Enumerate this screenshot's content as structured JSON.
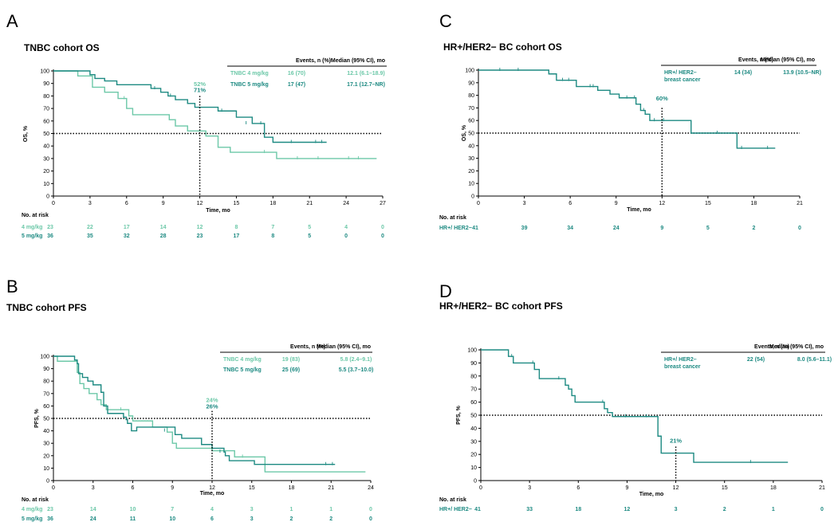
{
  "colors": {
    "light": "#6cc8a8",
    "dark": "#1d8a82",
    "axis": "#000000"
  },
  "chart_data": [
    {
      "id": "A",
      "type": "line",
      "panel_letter": "A",
      "title": "TNBC cohort OS",
      "xlabel": "Time, mo",
      "ylabel": "OS, %",
      "xlim": [
        0,
        27
      ],
      "ylim": [
        0,
        100
      ],
      "xticks": [
        0,
        3,
        6,
        9,
        12,
        15,
        18,
        21,
        24,
        27
      ],
      "yticks": [
        0,
        10,
        20,
        30,
        40,
        50,
        60,
        70,
        80,
        90,
        100
      ],
      "legend": {
        "headers": [
          "Events, n (%)",
          "Median (95% CI), mo"
        ],
        "rows": [
          {
            "label": "TNBC 4 mg/kg",
            "events": "16 (70)",
            "median": "12.1 (6.1–18.9)",
            "color": "light"
          },
          {
            "label": "TNBC 5 mg/kg",
            "events": "17 (47)",
            "median": "17.1 (12.7–NR)",
            "color": "dark"
          }
        ]
      },
      "annotations": [
        {
          "text": "52%",
          "x": 12,
          "y": 88,
          "color": "light"
        },
        {
          "text": "71%",
          "x": 12,
          "y": 83,
          "color": "dark"
        }
      ],
      "vline": {
        "x": 12,
        "y": 80
      },
      "series": [
        {
          "name": "TNBC 4 mg/kg",
          "color": "light",
          "steps": [
            [
              0,
              100
            ],
            [
              2,
              96
            ],
            [
              3.2,
              87
            ],
            [
              4.2,
              83
            ],
            [
              5.3,
              78
            ],
            [
              6,
              70
            ],
            [
              6.5,
              65
            ],
            [
              9.5,
              61
            ],
            [
              10,
              56
            ],
            [
              11,
              52
            ],
            [
              12.5,
              48
            ],
            [
              13.5,
              39
            ],
            [
              14.5,
              35
            ],
            [
              18.3,
              30
            ],
            [
              26.5,
              30
            ]
          ],
          "censors": [
            [
              5.8,
              78
            ],
            [
              17.3,
              35
            ],
            [
              20,
              30
            ],
            [
              21.7,
              30
            ],
            [
              24.2,
              30
            ],
            [
              25,
              30
            ]
          ]
        },
        {
          "name": "TNBC 5 mg/kg",
          "color": "dark",
          "steps": [
            [
              0,
              100
            ],
            [
              3,
              97
            ],
            [
              3.4,
              94
            ],
            [
              4.2,
              92
            ],
            [
              5.2,
              89
            ],
            [
              8,
              86
            ],
            [
              8.8,
              83
            ],
            [
              9.4,
              80
            ],
            [
              10,
              77
            ],
            [
              11,
              74
            ],
            [
              11.6,
              71
            ],
            [
              13.5,
              68
            ],
            [
              15,
              63
            ],
            [
              16.3,
              58
            ],
            [
              17.3,
              47
            ],
            [
              18,
              43
            ],
            [
              22.4,
              43
            ]
          ],
          "censors": [
            [
              8.3,
              86
            ],
            [
              9.6,
              80
            ],
            [
              13.8,
              68
            ],
            [
              15.8,
              58
            ],
            [
              17,
              58
            ],
            [
              19.5,
              43
            ],
            [
              21.5,
              43
            ],
            [
              22,
              43
            ]
          ]
        }
      ],
      "risk": {
        "header": "No. at risk",
        "times": [
          0,
          3,
          6,
          9,
          12,
          15,
          18,
          21,
          24,
          27
        ],
        "rows": [
          {
            "label": "4 mg/kg",
            "values": [
              "23",
              "22",
              "17",
              "14",
              "12",
              "8",
              "7",
              "5",
              "4",
              "0"
            ],
            "color": "light"
          },
          {
            "label": "5 mg/kg",
            "values": [
              "36",
              "35",
              "32",
              "28",
              "23",
              "17",
              "8",
              "5",
              "0",
              "0"
            ],
            "color": "dark"
          }
        ]
      }
    },
    {
      "id": "B",
      "type": "line",
      "panel_letter": "B",
      "title": "TNBC cohort PFS",
      "xlabel": "Time, mo",
      "ylabel": "PFS, %",
      "xlim": [
        0,
        24
      ],
      "ylim": [
        0,
        100
      ],
      "xticks": [
        0,
        3,
        6,
        9,
        12,
        15,
        18,
        21,
        24
      ],
      "yticks": [
        0,
        10,
        20,
        30,
        40,
        50,
        60,
        70,
        80,
        90,
        100
      ],
      "legend": {
        "headers": [
          "Events, n (%)",
          "Median (95% CI), mo"
        ],
        "rows": [
          {
            "label": "TNBC 4 mg/kg",
            "events": "19 (83)",
            "median": "5.8 (2.4–9.1)",
            "color": "light"
          },
          {
            "label": "TNBC 5 mg/kg",
            "events": "25 (69)",
            "median": "5.5 (3.7–10.0)",
            "color": "dark"
          }
        ]
      },
      "annotations": [
        {
          "text": "24%",
          "x": 12,
          "y": 63,
          "color": "light"
        },
        {
          "text": "26%",
          "x": 12,
          "y": 58,
          "color": "dark"
        }
      ],
      "vline": {
        "x": 12,
        "y": 56
      },
      "series": [
        {
          "name": "TNBC 4 mg/kg",
          "color": "light",
          "steps": [
            [
              0,
              100
            ],
            [
              0.3,
              96
            ],
            [
              1.8,
              87
            ],
            [
              2,
              78
            ],
            [
              2.3,
              74
            ],
            [
              2.7,
              70
            ],
            [
              3.3,
              65
            ],
            [
              3.6,
              61
            ],
            [
              4,
              57
            ],
            [
              5.7,
              52
            ],
            [
              6,
              48
            ],
            [
              7.5,
              43
            ],
            [
              8.6,
              39
            ],
            [
              9,
              30
            ],
            [
              9.3,
              26
            ],
            [
              12,
              24
            ],
            [
              13.7,
              19
            ],
            [
              16,
              7
            ],
            [
              23.6,
              7
            ]
          ],
          "censors": [
            [
              5.1,
              57
            ],
            [
              14.3,
              19
            ]
          ]
        },
        {
          "name": "TNBC 5 mg/kg",
          "color": "dark",
          "steps": [
            [
              0,
              100
            ],
            [
              1.6,
              97
            ],
            [
              1.8,
              94
            ],
            [
              1.9,
              86
            ],
            [
              2.2,
              83
            ],
            [
              2.6,
              80
            ],
            [
              3,
              77
            ],
            [
              3.6,
              71
            ],
            [
              3.8,
              60
            ],
            [
              4.1,
              54
            ],
            [
              5.3,
              51
            ],
            [
              5.5,
              49
            ],
            [
              5.6,
              46
            ],
            [
              5.9,
              40
            ],
            [
              6.3,
              43
            ],
            [
              9.2,
              37
            ],
            [
              9.7,
              34
            ],
            [
              11.2,
              29
            ],
            [
              12,
              26
            ],
            [
              12.9,
              23
            ],
            [
              13,
              20
            ],
            [
              13.3,
              16
            ],
            [
              15.2,
              13
            ],
            [
              21.3,
              13
            ]
          ],
          "censors": [
            [
              8.4,
              40
            ],
            [
              12.6,
              23
            ],
            [
              20.6,
              13
            ],
            [
              21.1,
              13
            ]
          ]
        }
      ],
      "risk": {
        "header": "No. at risk",
        "times": [
          0,
          3,
          6,
          9,
          12,
          15,
          18,
          21,
          24
        ],
        "rows": [
          {
            "label": "4 mg/kg",
            "values": [
              "23",
              "14",
              "10",
              "7",
              "4",
              "3",
              "1",
              "1",
              "0"
            ],
            "color": "light"
          },
          {
            "label": "5 mg/kg",
            "values": [
              "36",
              "24",
              "11",
              "10",
              "6",
              "3",
              "2",
              "2",
              "0"
            ],
            "color": "dark"
          }
        ]
      }
    },
    {
      "id": "C",
      "type": "line",
      "panel_letter": "C",
      "title": "HR+/HER2− BC cohort OS",
      "xlabel": "Time, mo",
      "ylabel": "OS, %",
      "xlim": [
        0,
        21
      ],
      "ylim": [
        0,
        100
      ],
      "xticks": [
        0,
        3,
        6,
        9,
        12,
        15,
        18,
        21
      ],
      "yticks": [
        0,
        10,
        20,
        30,
        40,
        50,
        60,
        70,
        80,
        90,
        100
      ],
      "legend": {
        "headers": [
          "Events, n (%)",
          "Median (95% CI), mo"
        ],
        "rows": [
          {
            "label": "HR+/ HER2–",
            "label2": "breast cancer",
            "events": "14 (34)",
            "median": "13.9 (10.5–NR)",
            "color": "dark"
          }
        ]
      },
      "annotations": [
        {
          "text": "60%",
          "x": 12,
          "y": 76,
          "color": "dark"
        }
      ],
      "vline": {
        "x": 12,
        "y": 70
      },
      "series": [
        {
          "name": "HR+/ HER2– breast cancer",
          "color": "dark",
          "steps": [
            [
              0,
              100
            ],
            [
              4.6,
              97
            ],
            [
              5.1,
              92
            ],
            [
              6.4,
              87
            ],
            [
              7.8,
              84
            ],
            [
              8.6,
              81
            ],
            [
              9.2,
              78
            ],
            [
              10.3,
              73
            ],
            [
              10.6,
              68
            ],
            [
              10.9,
              65
            ],
            [
              11.2,
              60
            ],
            [
              13.9,
              50
            ],
            [
              16.9,
              38
            ],
            [
              19.4,
              38
            ]
          ],
          "censors": [
            [
              1.4,
              100
            ],
            [
              2.6,
              100
            ],
            [
              5.5,
              92
            ],
            [
              5.9,
              92
            ],
            [
              7.3,
              87
            ],
            [
              7.5,
              87
            ],
            [
              9.7,
              78
            ],
            [
              10.2,
              78
            ],
            [
              10.8,
              68
            ],
            [
              11.5,
              60
            ],
            [
              12.1,
              60
            ],
            [
              15.6,
              50
            ],
            [
              17.2,
              38
            ],
            [
              18.9,
              38
            ]
          ]
        }
      ],
      "risk": {
        "header": "No. at risk",
        "times": [
          0,
          3,
          6,
          9,
          12,
          15,
          18,
          21
        ],
        "rows": [
          {
            "label": "HR+/ HER2−",
            "values": [
              "41",
              "39",
              "34",
              "24",
              "9",
              "5",
              "2",
              "0"
            ],
            "color": "dark"
          }
        ]
      }
    },
    {
      "id": "D",
      "type": "line",
      "panel_letter": "D",
      "title": "HR+/HER2− BC cohort PFS",
      "xlabel": "Time, mo",
      "ylabel": "PFS, %",
      "xlim": [
        0,
        21
      ],
      "ylim": [
        0,
        100
      ],
      "xticks": [
        0,
        3,
        6,
        9,
        12,
        15,
        18,
        21
      ],
      "yticks": [
        0,
        10,
        20,
        30,
        40,
        50,
        60,
        70,
        80,
        90,
        100
      ],
      "legend": {
        "headers": [
          "Events, n (%)",
          "Median (95% CI), mo"
        ],
        "rows": [
          {
            "label": "HR+/ HER2–",
            "label2": "breast cancer",
            "events": "22 (54)",
            "median": "8.0 (5.6–11.1)",
            "color": "dark"
          }
        ]
      },
      "annotations": [
        {
          "text": "21%",
          "x": 12,
          "y": 29,
          "color": "dark"
        }
      ],
      "vline": {
        "x": 12,
        "y": 26
      },
      "series": [
        {
          "name": "HR+/ HER2– breast cancer",
          "color": "dark",
          "steps": [
            [
              0,
              100
            ],
            [
              1.7,
              95
            ],
            [
              2,
              90
            ],
            [
              3.3,
              85
            ],
            [
              3.6,
              78
            ],
            [
              5.2,
              73
            ],
            [
              5.4,
              70
            ],
            [
              5.6,
              65
            ],
            [
              5.8,
              60
            ],
            [
              7.6,
              55
            ],
            [
              7.8,
              52
            ],
            [
              8.1,
              49
            ],
            [
              10.9,
              34
            ],
            [
              11.1,
              21
            ],
            [
              13.1,
              14
            ],
            [
              18.9,
              14
            ]
          ],
          "censors": [
            [
              1.9,
              95
            ],
            [
              3.2,
              90
            ],
            [
              4.8,
              78
            ],
            [
              7.5,
              60
            ],
            [
              8.9,
              49
            ],
            [
              10.2,
              49
            ],
            [
              16.6,
              14
            ]
          ]
        }
      ],
      "risk": {
        "header": "No. at risk",
        "times": [
          0,
          3,
          6,
          9,
          12,
          15,
          18,
          21
        ],
        "rows": [
          {
            "label": "HR+/ HER2−",
            "values": [
              "41",
              "33",
              "18",
              "12",
              "3",
              "2",
              "1",
              "0"
            ],
            "color": "dark"
          }
        ]
      }
    }
  ]
}
